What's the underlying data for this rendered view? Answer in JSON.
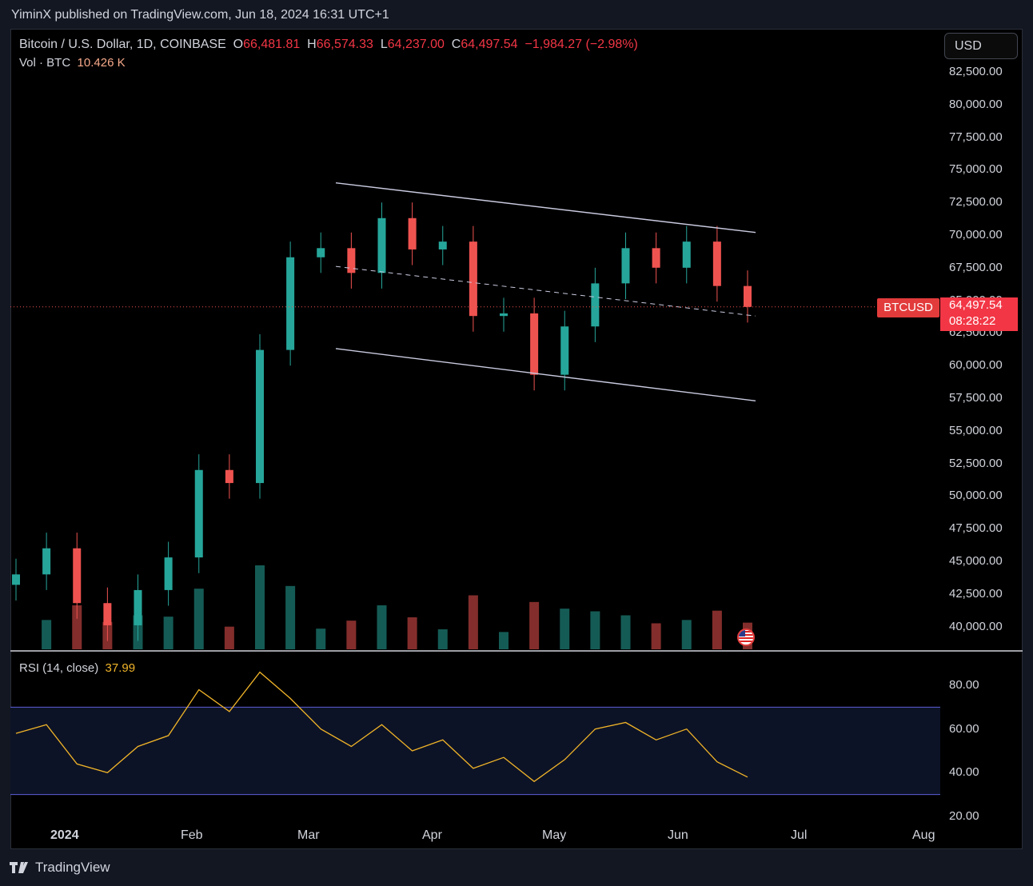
{
  "header": {
    "published": "YiminX published on TradingView.com, Jun 18, 2024 16:31 UTC+1"
  },
  "legend": {
    "symbol": "Bitcoin / U.S. Dollar, 1D, COINBASE",
    "open_label": "O",
    "open": "66,481.81",
    "high_label": "H",
    "high": "66,574.33",
    "low_label": "L",
    "low": "64,237.00",
    "close_label": "C",
    "close": "64,497.54",
    "change": "−1,984.27 (−2.98%)",
    "vol_label": "Vol · BTC",
    "vol": "10.426 K",
    "rsi_label": "RSI (14, close)",
    "rsi": "37.99"
  },
  "currency_button": "USD",
  "price_axis": [
    "82,500.00",
    "80,000.00",
    "77,500.00",
    "75,000.00",
    "72,500.00",
    "70,000.00",
    "67,500.00",
    "65,000.00",
    "62,500.00",
    "60,000.00",
    "57,500.00",
    "55,000.00",
    "52,500.00",
    "50,000.00",
    "47,500.00",
    "45,000.00",
    "42,500.00",
    "40,000.00"
  ],
  "rsi_axis": [
    "80.00",
    "60.00",
    "40.00",
    "20.00"
  ],
  "time_axis": [
    {
      "label": "2024",
      "bold": true
    },
    {
      "label": "Feb",
      "bold": false
    },
    {
      "label": "Mar",
      "bold": false
    },
    {
      "label": "Apr",
      "bold": false
    },
    {
      "label": "May",
      "bold": false
    },
    {
      "label": "Jun",
      "bold": false
    },
    {
      "label": "Jul",
      "bold": false
    },
    {
      "label": "Aug",
      "bold": false
    }
  ],
  "last_price": {
    "symbol": "BTCUSD",
    "price": "64,497.54",
    "countdown": "08:28:22"
  },
  "brand": "TradingView",
  "colors": {
    "up": "#26a69a",
    "down": "#ef5350",
    "rsi_line": "#f0b429",
    "rsi_band": "#5b5fd6",
    "channel": "#c9cbe0"
  },
  "chart_data": {
    "type": "candlestick",
    "title": "Bitcoin / U.S. Dollar, 1D, COINBASE",
    "x": [
      "2023-12-31",
      "2024-01-07",
      "2024-01-14",
      "2024-01-21",
      "2024-01-28",
      "2024-02-04",
      "2024-02-11",
      "2024-02-18",
      "2024-02-25",
      "2024-03-03",
      "2024-03-10",
      "2024-03-17",
      "2024-03-24",
      "2024-03-31",
      "2024-04-07",
      "2024-04-14",
      "2024-04-21",
      "2024-04-28",
      "2024-05-05",
      "2024-05-12",
      "2024-05-19",
      "2024-05-26",
      "2024-06-02",
      "2024-06-09",
      "2024-06-16"
    ],
    "close": [
      44000,
      46000,
      41800,
      40100,
      42800,
      45300,
      52000,
      51000,
      61200,
      68300,
      69000,
      67100,
      71300,
      68900,
      69500,
      63800,
      64000,
      59300,
      63000,
      66300,
      69000,
      67500,
      69500,
      66100,
      64497.54
    ],
    "ylim": [
      38000,
      84000
    ],
    "rsi": [
      58,
      62,
      44,
      40,
      52,
      57,
      78,
      68,
      86,
      74,
      60,
      52,
      62,
      50,
      55,
      42,
      47,
      36,
      46,
      60,
      63,
      55,
      60,
      45,
      37.99
    ],
    "rsi_bands": [
      70,
      30
    ],
    "channel": {
      "upper": [
        74000,
        70200
      ],
      "mid": [
        67600,
        63800
      ],
      "lower": [
        61300,
        57300
      ]
    }
  }
}
